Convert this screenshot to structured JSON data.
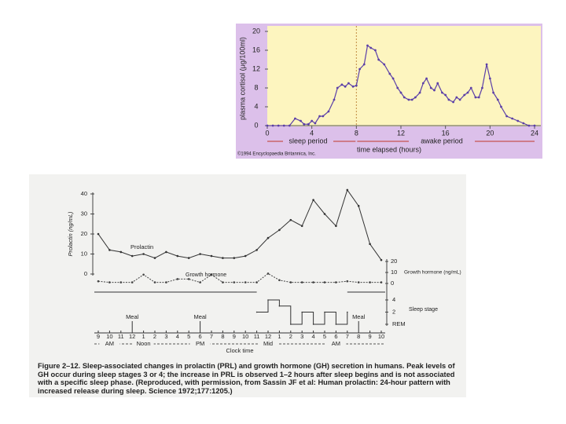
{
  "chart_data": [
    {
      "type": "line",
      "y_label": "plasma cortisol (μg/100ml)",
      "x_label": "time elapsed (hours)",
      "periods": [
        "sleep period",
        "awake period"
      ],
      "credit": "©1994 Encyclopaedia Britannica, Inc.",
      "sleep_end": 8,
      "x": [
        0,
        0.5,
        1,
        1.5,
        2,
        2.5,
        3,
        3.3,
        3.7,
        4,
        4.3,
        4.7,
        5,
        5.5,
        6,
        6.3,
        6.7,
        7,
        7.3,
        7.7,
        8,
        8.3,
        8.7,
        9,
        9.3,
        9.7,
        10,
        10.5,
        11,
        11.3,
        11.7,
        12,
        12.3,
        12.7,
        13,
        13.3,
        13.7,
        14,
        14.3,
        14.7,
        15,
        15.3,
        15.7,
        16,
        16.3,
        16.7,
        17,
        17.3,
        17.7,
        18,
        18.3,
        18.7,
        19,
        19.3,
        19.7,
        20,
        20.3,
        20.7,
        21,
        21.5,
        22,
        22.5,
        23,
        23.5,
        24
      ],
      "series": [
        {
          "color": "#5b3fa8",
          "values": [
            0,
            0,
            0,
            0,
            0,
            1.5,
            1,
            0.3,
            0.3,
            1,
            0.5,
            2,
            2,
            3,
            5.5,
            8,
            8.7,
            8.3,
            9,
            8.3,
            8.5,
            12,
            13,
            17,
            16.5,
            16,
            14,
            13,
            11,
            10,
            8,
            7,
            6,
            5.5,
            5.5,
            6,
            7,
            9,
            10,
            8,
            7.5,
            9,
            7,
            6.5,
            5.5,
            5,
            6,
            5.5,
            6.5,
            7,
            8,
            6,
            6,
            8,
            13,
            10,
            7,
            5.5,
            4,
            2,
            1.5,
            1,
            0.5,
            0,
            0
          ]
        }
      ],
      "xlim": [
        0,
        24
      ],
      "ylim": [
        0,
        20
      ],
      "xticks": [
        0,
        4,
        8,
        12,
        16,
        20,
        24
      ],
      "yticks": [
        0,
        4,
        8,
        12,
        16,
        20
      ]
    },
    {
      "type": "line",
      "categories": [
        "9",
        "10",
        "11",
        "12",
        "1",
        "2",
        "3",
        "4",
        "5",
        "6",
        "7",
        "8",
        "9",
        "10",
        "11",
        "12",
        "1",
        "2",
        "3",
        "4",
        "5",
        "6",
        "7",
        "8",
        "9",
        "10"
      ],
      "period_labels": [
        "AM",
        "Noon",
        "PM",
        "Mid",
        "AM"
      ],
      "x_label": "Clock time",
      "annotations": [
        "Meal",
        "Meal",
        "Meal"
      ],
      "y_label": "Prolactin (ng/mL)",
      "y2_label": "Growth hormone (ng/mL)",
      "series": [
        {
          "name": "Prolactin",
          "color": "#333333",
          "values": [
            20,
            12,
            11,
            9,
            10,
            8,
            11,
            9,
            8,
            10,
            9,
            8,
            8,
            9,
            12,
            18,
            22,
            27,
            24,
            37,
            30,
            24,
            42,
            34,
            15,
            7
          ]
        },
        {
          "name": "Growth hormone",
          "color": "#444444",
          "axis": "y2",
          "values": [
            2,
            1,
            1,
            1,
            8,
            1,
            1,
            4,
            4,
            1,
            8,
            1,
            1,
            1,
            1,
            9,
            3,
            1,
            1,
            1,
            1,
            1,
            2,
            1,
            1,
            1
          ]
        },
        {
          "name": "Sleep stage",
          "color": "#333333",
          "axis": "y3",
          "values": [
            null,
            null,
            null,
            null,
            null,
            null,
            null,
            null,
            null,
            null,
            null,
            null,
            null,
            null,
            2,
            4,
            3,
            0,
            2,
            0,
            2,
            0,
            2,
            null,
            null,
            null
          ]
        }
      ],
      "ylim": [
        0,
        40
      ],
      "yticks": [
        0,
        10,
        20,
        30,
        40
      ],
      "y2lim": [
        0,
        20
      ],
      "y2ticks": [
        0,
        10,
        20
      ],
      "y3lim": [
        0,
        4
      ],
      "y3ticks": [
        {
          "value": 0,
          "label": "REM"
        },
        2,
        4
      ],
      "caption_label": "Figure 2–12.",
      "caption": "Sleep-associated changes in prolactin (PRL) and growth hormone (GH) secretion in humans. Peak levels of GH occur during sleep stages 3 or 4; the increase in PRL is observed 1–2 hours after sleep begins and is not associated with a specific sleep phase. (Reproduced, with permission, from Sassin JF et al: Human prolactin: 24-hour pattern with increased release during sleep. Science 1972;177:1205.)"
    }
  ]
}
